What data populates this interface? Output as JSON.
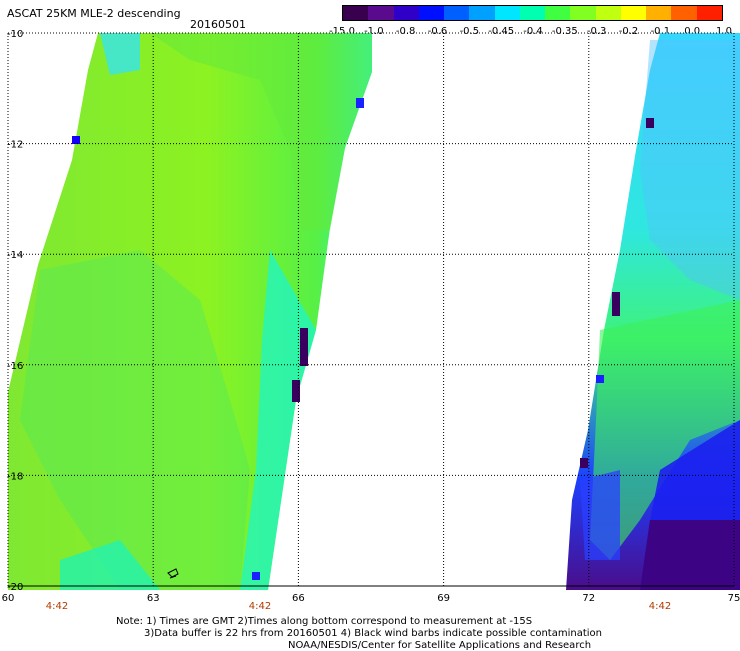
{
  "header": {
    "title": "ASCAT 25KM MLE-2 descending",
    "date": "20160501"
  },
  "colorbar": {
    "colors": [
      "#3a0050",
      "#5a0a8c",
      "#2e00c8",
      "#0010ff",
      "#0060ff",
      "#00a0ff",
      "#00e6ff",
      "#00ffb0",
      "#40ff40",
      "#80ff20",
      "#c0ff10",
      "#ffff00",
      "#ffb000",
      "#ff6000",
      "#ff2000"
    ],
    "labels": [
      "-15.0",
      "-1.0",
      "-0.8",
      "-0.6",
      "-0.5",
      "-0.45",
      "-0.4",
      "-0.35",
      "-0.3",
      "-0.2",
      "-0.1",
      "0.0",
      "1.0"
    ]
  },
  "map": {
    "lon_ticks": [
      "60",
      "63",
      "66",
      "69",
      "72",
      "75"
    ],
    "lat_ticks": [
      "-10",
      "-12",
      "-14",
      "-16",
      "-18",
      "-20"
    ],
    "time_labels": [
      "4:42",
      "4:42",
      "4:42"
    ]
  },
  "notes": {
    "line1": "Note: 1) Times are GMT 2)Times along bottom correspond to measurement at -15S",
    "line2": "3)Data buffer is 22 hrs from 20160501 4) Black wind barbs indicate possible contamination",
    "line3": "NOAA/NESDIS/Center for Satellite Applications and Research"
  }
}
